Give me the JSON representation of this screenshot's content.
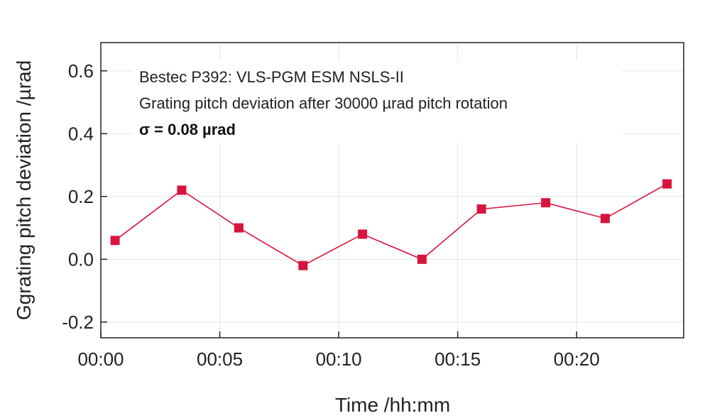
{
  "chart_data": {
    "type": "line",
    "xlabel": "Time /hh:mm",
    "ylabel": "Ggrating pitch deviation /µrad",
    "x_unit": "minutes",
    "xlim": [
      0,
      24.5
    ],
    "ylim": [
      -0.25,
      0.69
    ],
    "x_ticks": [
      0,
      5,
      10,
      15,
      20
    ],
    "x_tick_labels": [
      "00:00",
      "00:05",
      "00:10",
      "00:15",
      "00:20"
    ],
    "y_ticks": [
      -0.2,
      0.0,
      0.2,
      0.4,
      0.6
    ],
    "y_tick_labels": [
      "-0.2",
      "0.0",
      "0.2",
      "0.4",
      "0.6"
    ],
    "grid": true,
    "annotations": [
      "Bestec P392: VLS-PGM ESM NSLS-II",
      "Grating pitch deviation after 30000 µrad pitch rotation",
      "σ  = 0.08 µrad"
    ],
    "series": [
      {
        "color": "#d8143c",
        "marker": "square",
        "x": [
          0.6,
          3.4,
          5.8,
          8.5,
          11.0,
          13.5,
          16.0,
          18.7,
          21.2,
          23.8
        ],
        "y": [
          0.06,
          0.22,
          0.1,
          -0.02,
          0.08,
          0.0,
          0.16,
          0.18,
          0.13,
          0.24
        ]
      }
    ]
  }
}
